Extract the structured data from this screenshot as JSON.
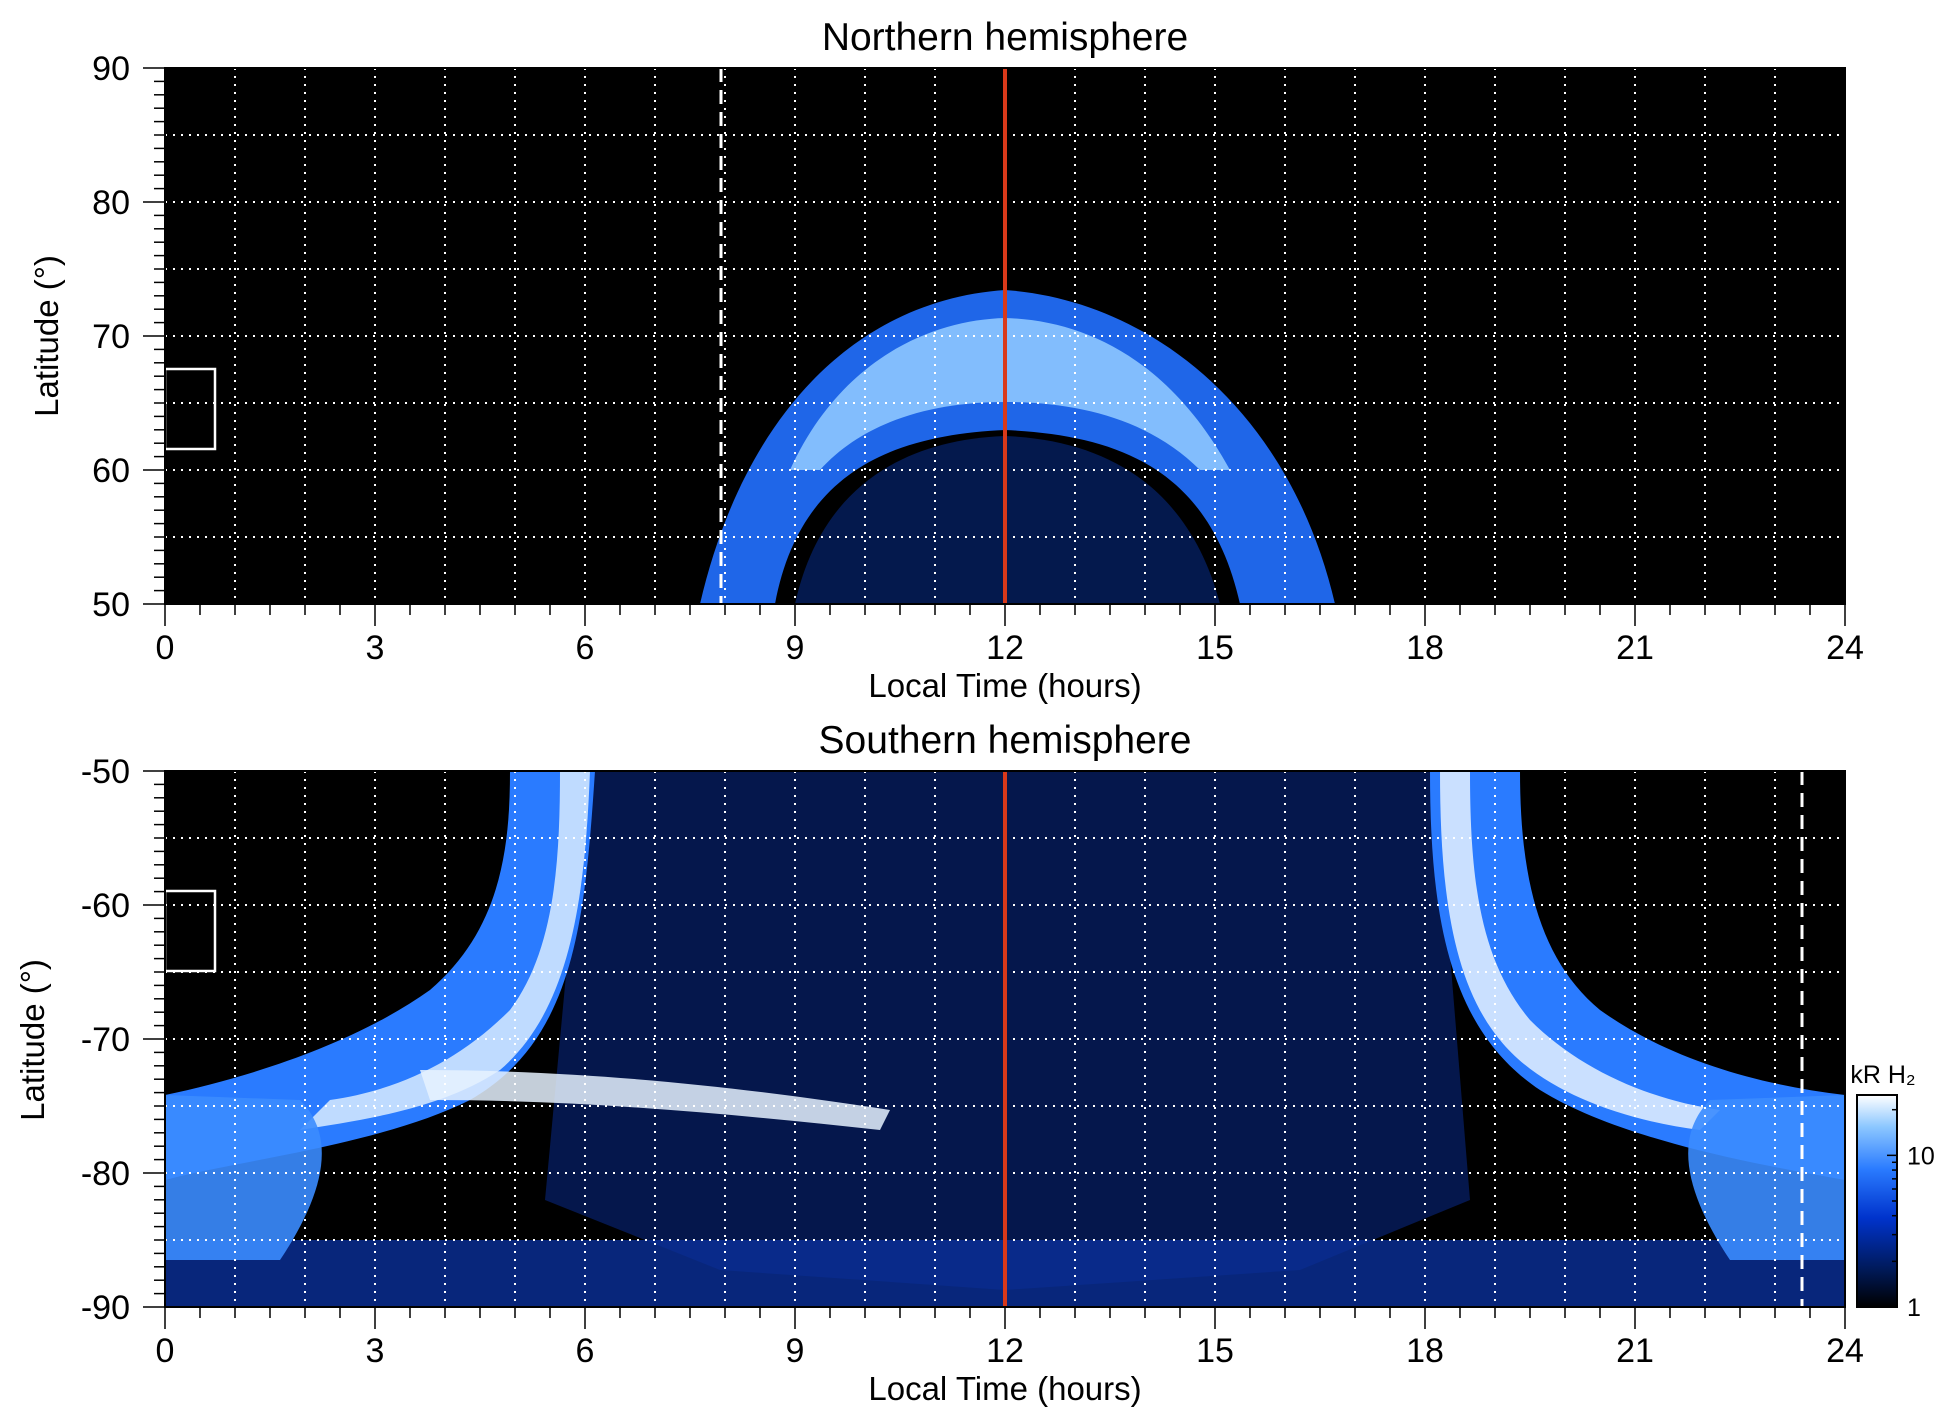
{
  "chart_data": [
    {
      "type": "heatmap",
      "title": "Northern hemisphere",
      "xlabel": "Local Time (hours)",
      "ylabel": "Latitude (°)",
      "xlim": [
        0,
        24
      ],
      "ylim": [
        50,
        90
      ],
      "xticks": [
        "0",
        "3",
        "6",
        "9",
        "12",
        "15",
        "18",
        "21",
        "24"
      ],
      "yticks": [
        "50",
        "60",
        "70",
        "80",
        "90"
      ],
      "grid": true,
      "background": "#000000",
      "reference_line_localtime": 12,
      "reference_line_color": "#d9391a",
      "dashed_line_localtime": 7.9,
      "box_latitude": [
        61.5,
        67.5
      ],
      "box_localtime": [
        0,
        0.7
      ],
      "main_oval": {
        "center_localtime": 12,
        "latitude_at_noon": 67.5,
        "latitude_at_8_and_16.5": 50,
        "intensity_kR": "5-20"
      }
    },
    {
      "type": "heatmap",
      "title": "Southern hemisphere",
      "xlabel": "Local Time (hours)",
      "ylabel": "Latitude (°)",
      "xlim": [
        0,
        24
      ],
      "ylim": [
        -90,
        -50
      ],
      "xticks": [
        "0",
        "3",
        "6",
        "9",
        "12",
        "15",
        "18",
        "21",
        "24"
      ],
      "yticks": [
        "-90",
        "-80",
        "-70",
        "-60",
        "-50"
      ],
      "grid": true,
      "background": "#000000",
      "reference_line_localtime": 12,
      "reference_line_color": "#d9391a",
      "dashed_line_localtime": 23.4,
      "dashed_line_latitude": [
        -90,
        -70
      ],
      "box_latitude": [
        -65,
        -59
      ],
      "box_localtime": [
        0,
        0.7
      ],
      "main_oval": {
        "latitude_at_6_and_18": -50,
        "latitude_at_0_and_24": -75,
        "intensity_kR": "5-20"
      },
      "colorbar": {
        "label": "kR H₂",
        "scale": "log",
        "range": [
          1,
          25
        ],
        "ticks": [
          "1",
          "10"
        ],
        "colors": [
          "#000000",
          "#001a5a",
          "#0033cc",
          "#2a7bff",
          "#8cc7ff",
          "#ffffff"
        ]
      }
    }
  ]
}
